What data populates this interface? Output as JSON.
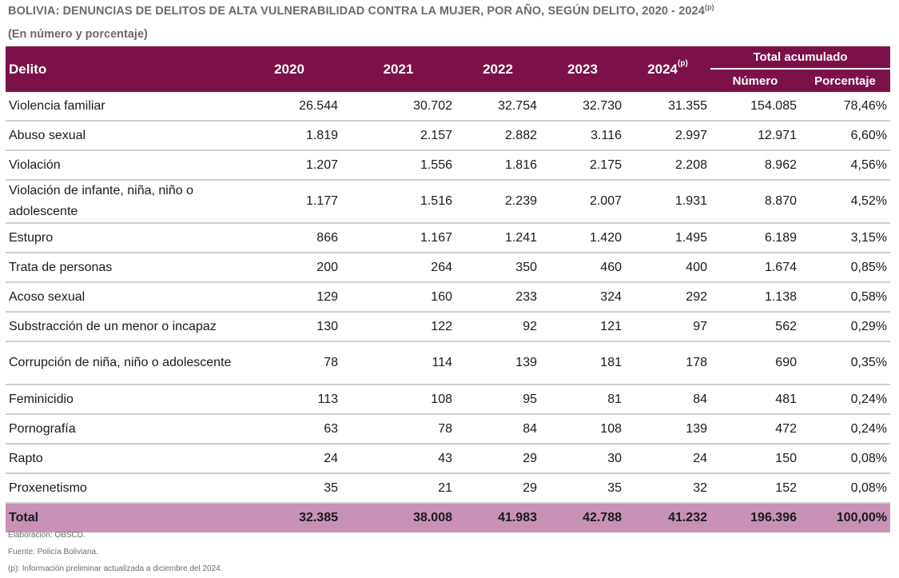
{
  "title": {
    "main": "BOLIVIA: DENUNCIAS DE DELITOS DE ALTA VULNERABILIDAD CONTRA LA MUJER, POR AÑO, SEGÚN DELITO, 2020 - 2024",
    "sup": "(p)",
    "subtitle": "(En número y porcentaje)"
  },
  "header": {
    "delito": "Delito",
    "y2020": "2020",
    "y2021": "2021",
    "y2022": "2022",
    "y2023": "2023",
    "y2024": "2024",
    "y2024_sup": "(p)",
    "total_group": "Total acumulado",
    "numero": "Número",
    "porcentaje": "Porcentaje"
  },
  "rows": [
    {
      "delito": "Violencia familiar",
      "v2020": "26.544",
      "v2021": "30.702",
      "v2022": "32.754",
      "v2023": "32.730",
      "v2024": "31.355",
      "numero": "154.085",
      "porcentaje": "78,46%"
    },
    {
      "delito": "Abuso sexual",
      "v2020": "1.819",
      "v2021": "2.157",
      "v2022": "2.882",
      "v2023": "3.116",
      "v2024": "2.997",
      "numero": "12.971",
      "porcentaje": "6,60%"
    },
    {
      "delito": "Violación",
      "v2020": "1.207",
      "v2021": "1.556",
      "v2022": "1.816",
      "v2023": "2.175",
      "v2024": "2.208",
      "numero": "8.962",
      "porcentaje": "4,56%"
    },
    {
      "delito": "Violación de infante, niña, niño o adolescente",
      "v2020": "1.177",
      "v2021": "1.516",
      "v2022": "2.239",
      "v2023": "2.007",
      "v2024": "1.931",
      "numero": "8.870",
      "porcentaje": "4,52%"
    },
    {
      "delito": "Estupro",
      "v2020": "866",
      "v2021": "1.167",
      "v2022": "1.241",
      "v2023": "1.420",
      "v2024": "1.495",
      "numero": "6.189",
      "porcentaje": "3,15%"
    },
    {
      "delito": "Trata de personas",
      "v2020": "200",
      "v2021": "264",
      "v2022": "350",
      "v2023": "460",
      "v2024": "400",
      "numero": "1.674",
      "porcentaje": "0,85%"
    },
    {
      "delito": "Acoso sexual",
      "v2020": "129",
      "v2021": "160",
      "v2022": "233",
      "v2023": "324",
      "v2024": "292",
      "numero": "1.138",
      "porcentaje": "0,58%"
    },
    {
      "delito": "Substracción de un menor o incapaz",
      "v2020": "130",
      "v2021": "122",
      "v2022": "92",
      "v2023": "121",
      "v2024": "97",
      "numero": "562",
      "porcentaje": "0,29%"
    },
    {
      "delito": "Corrupción de niña, niño o adolescente",
      "v2020": "78",
      "v2021": "114",
      "v2022": "139",
      "v2023": "181",
      "v2024": "178",
      "numero": "690",
      "porcentaje": "0,35%"
    },
    {
      "delito": "Feminicidio",
      "v2020": "113",
      "v2021": "108",
      "v2022": "95",
      "v2023": "81",
      "v2024": "84",
      "numero": "481",
      "porcentaje": "0,24%"
    },
    {
      "delito": "Pornografía",
      "v2020": "63",
      "v2021": "78",
      "v2022": "84",
      "v2023": "108",
      "v2024": "139",
      "numero": "472",
      "porcentaje": "0,24%"
    },
    {
      "delito": "Rapto",
      "v2020": "24",
      "v2021": "43",
      "v2022": "29",
      "v2023": "30",
      "v2024": "24",
      "numero": "150",
      "porcentaje": "0,08%"
    },
    {
      "delito": "Proxenetismo",
      "v2020": "35",
      "v2021": "21",
      "v2022": "29",
      "v2023": "35",
      "v2024": "32",
      "numero": "152",
      "porcentaje": "0,08%"
    }
  ],
  "total": {
    "delito": "Total",
    "v2020": "32.385",
    "v2021": "38.008",
    "v2022": "41.983",
    "v2023": "42.788",
    "v2024": "41.232",
    "numero": "196.396",
    "porcentaje": "100,00%"
  },
  "notes": {
    "elaboracion": "Elaboración: OBSCD.",
    "fuente": "Fuente: Policía Boliviana.",
    "preliminar": "(p): Información preliminar actualizada a diciembre del 2024."
  },
  "colors": {
    "header_bg": "#7b1148",
    "total_bg": "#c792b6",
    "row_border": "#cfcfcf"
  }
}
